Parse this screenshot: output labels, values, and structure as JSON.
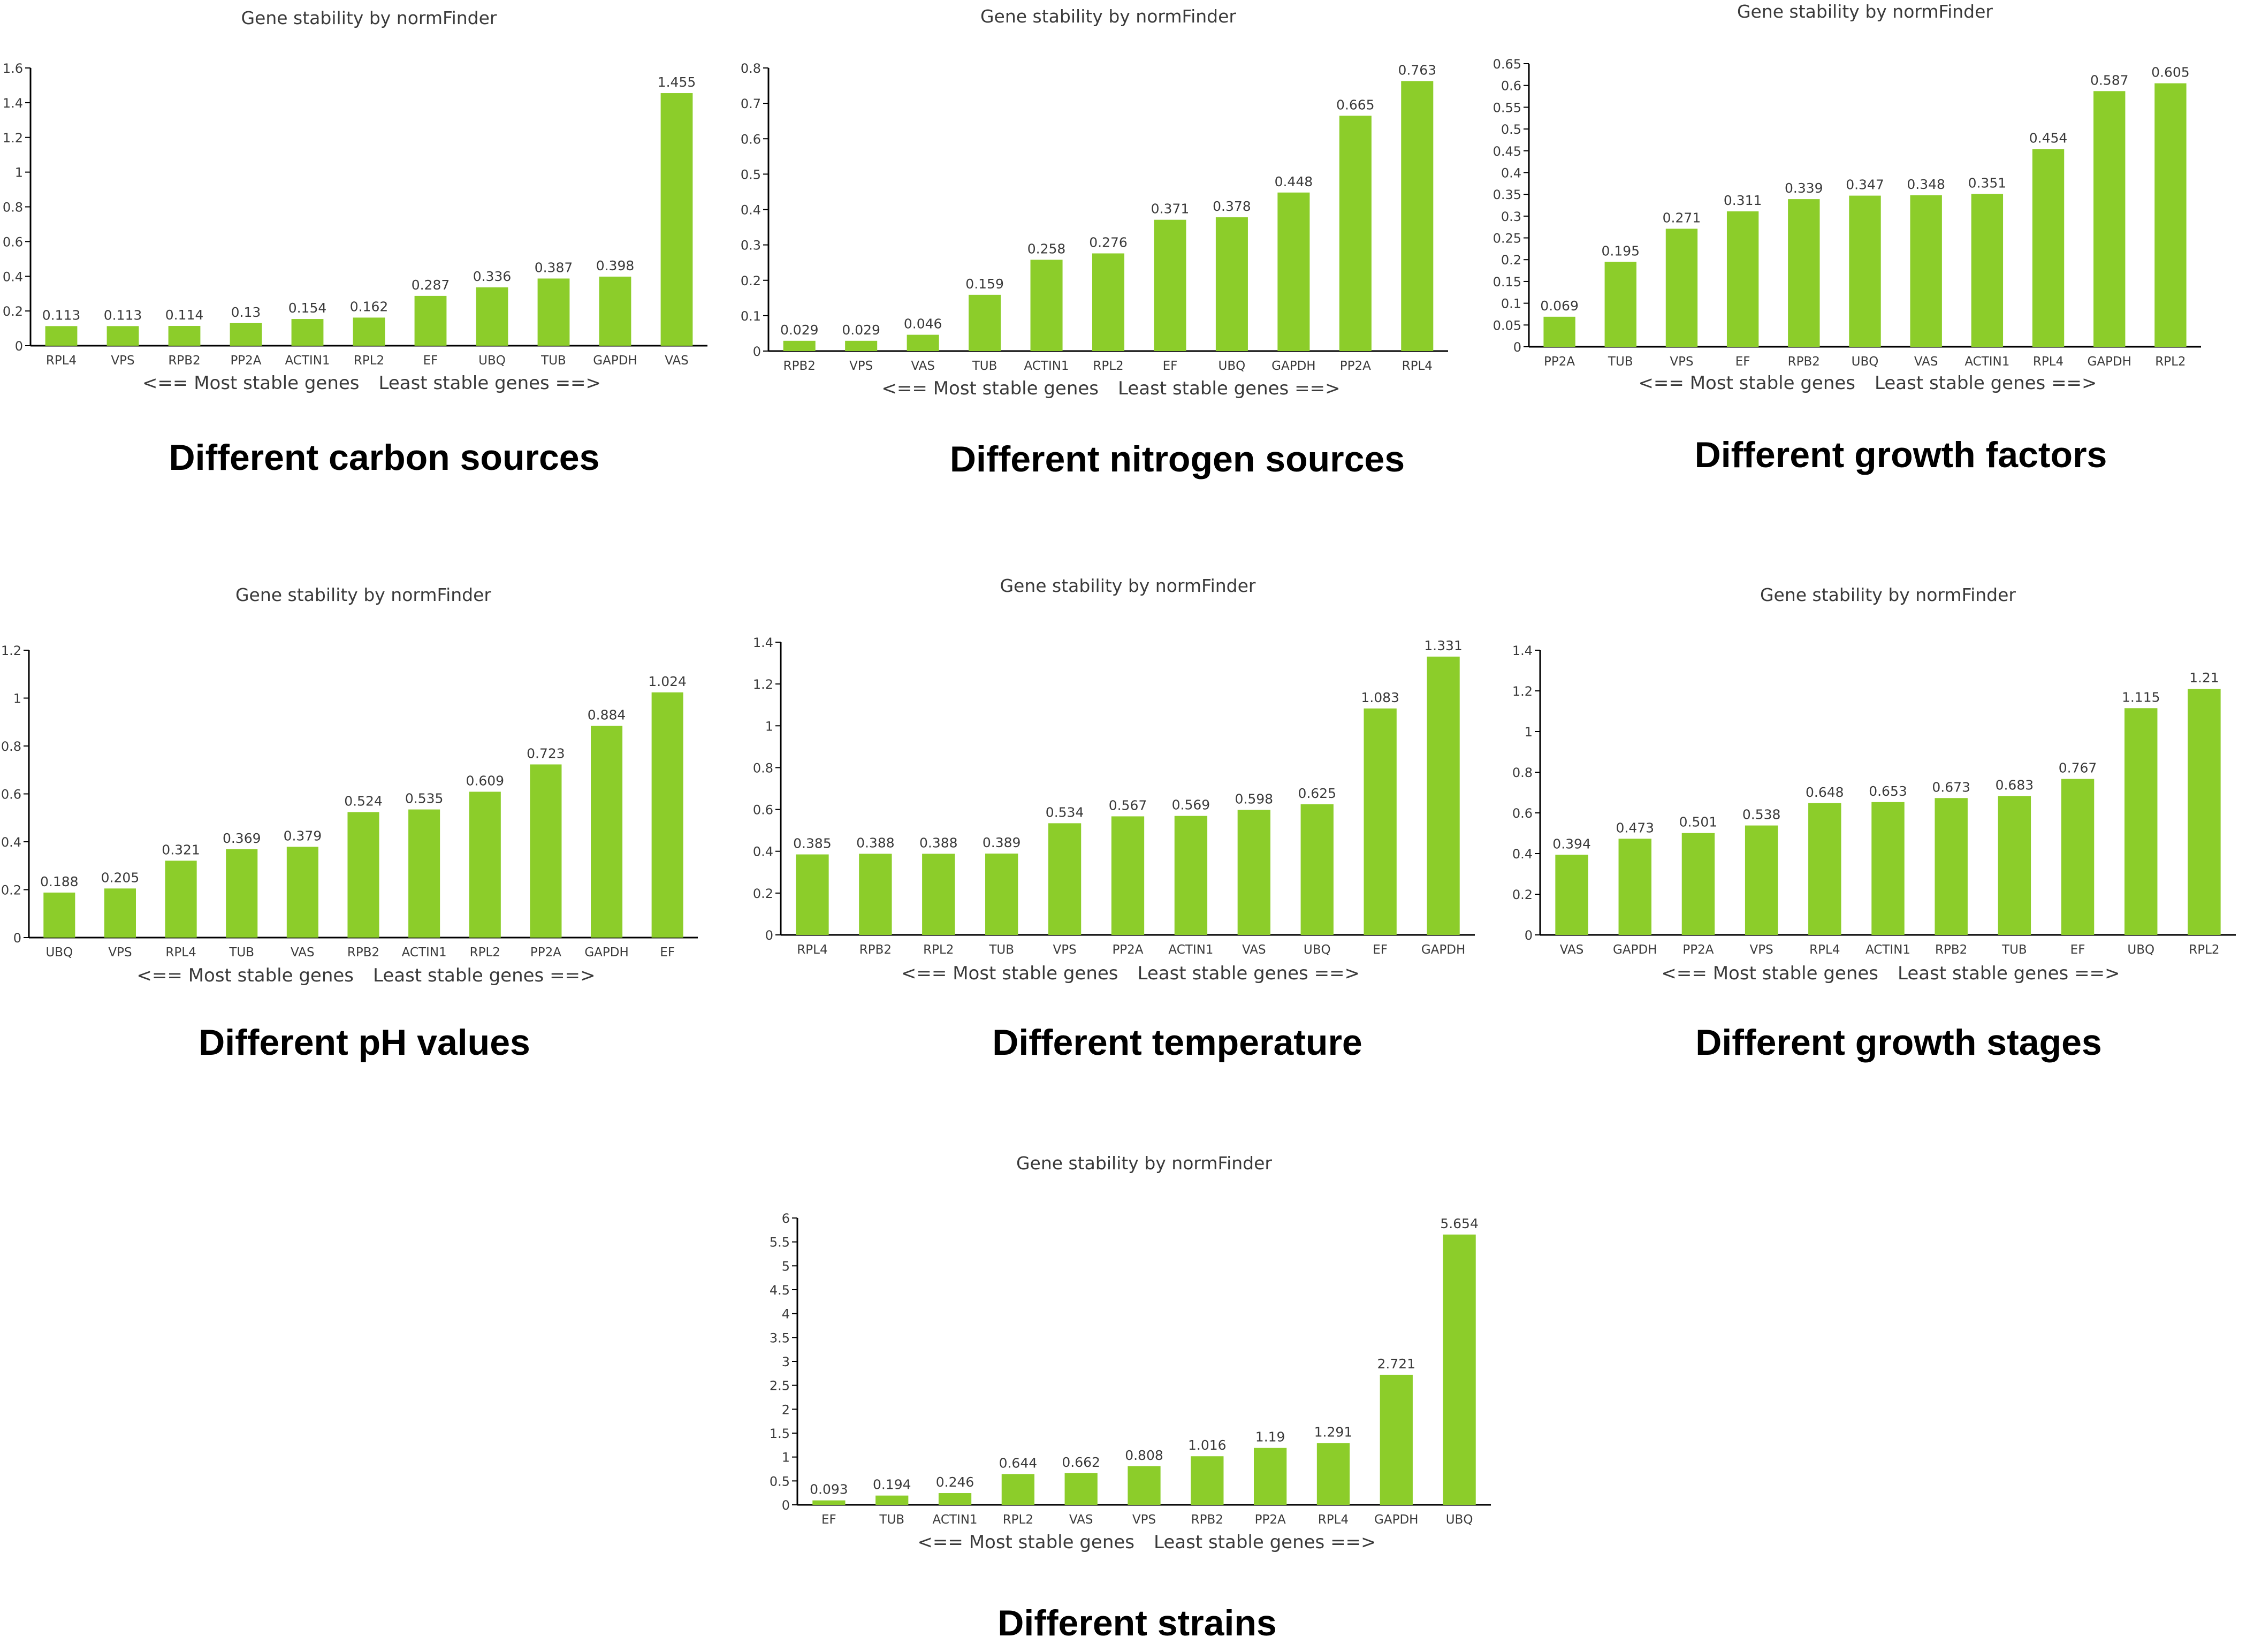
{
  "figure": {
    "bar_color": "#8ccd2a",
    "axis_color": "#000000",
    "text_color": "#3a3a3a",
    "caption_color": "#000000"
  },
  "chart_data": [
    {
      "type": "bar",
      "title": "Gene stability by normFinder",
      "caption": "Different carbon sources",
      "legend_left": "<== Most stable genes",
      "legend_right": "Least stable genes ==>",
      "categories": [
        "RPL4",
        "VPS",
        "RPB2",
        "PP2A",
        "ACTIN1",
        "RPL2",
        "EF",
        "UBQ",
        "TUB",
        "GAPDH",
        "VAS"
      ],
      "values": [
        0.113,
        0.113,
        0.114,
        0.13,
        0.154,
        0.162,
        0.287,
        0.336,
        0.387,
        0.398,
        1.455
      ],
      "value_labels": [
        "0.113",
        "0.113",
        "0.114",
        "0.13",
        "0.154",
        "0.162",
        "0.287",
        "0.336",
        "0.387",
        "0.398",
        "1.455"
      ],
      "ylim": [
        0,
        1.6
      ],
      "yticks": [
        0,
        0.2,
        0.4,
        0.6,
        0.8,
        1,
        1.2,
        1.4,
        1.6
      ],
      "ytick_labels": [
        "0",
        "0.2",
        "0.4",
        "0.6",
        "0.8",
        "1",
        "1.2",
        "1.4",
        "1.6"
      ]
    },
    {
      "type": "bar",
      "title": "Gene stability by normFinder",
      "caption": "Different nitrogen sources",
      "legend_left": "<== Most stable genes",
      "legend_right": "Least stable genes ==>",
      "categories": [
        "RPB2",
        "VPS",
        "VAS",
        "TUB",
        "ACTIN1",
        "RPL2",
        "EF",
        "UBQ",
        "GAPDH",
        "PP2A",
        "RPL4"
      ],
      "values": [
        0.029,
        0.029,
        0.046,
        0.159,
        0.258,
        0.276,
        0.371,
        0.378,
        0.448,
        0.665,
        0.763
      ],
      "value_labels": [
        "0.029",
        "0.029",
        "0.046",
        "0.159",
        "0.258",
        "0.276",
        "0.371",
        "0.378",
        "0.448",
        "0.665",
        "0.763"
      ],
      "ylim": [
        0,
        0.8
      ],
      "yticks": [
        0,
        0.1,
        0.2,
        0.3,
        0.4,
        0.5,
        0.6,
        0.7,
        0.8
      ],
      "ytick_labels": [
        "0",
        "0.1",
        "0.2",
        "0.3",
        "0.4",
        "0.5",
        "0.6",
        "0.7",
        "0.8"
      ]
    },
    {
      "type": "bar",
      "title": "Gene stability by normFinder",
      "caption": "Different growth factors",
      "legend_left": "<== Most stable genes",
      "legend_right": "Least stable genes ==>",
      "categories": [
        "PP2A",
        "TUB",
        "VPS",
        "EF",
        "RPB2",
        "UBQ",
        "VAS",
        "ACTIN1",
        "RPL4",
        "GAPDH",
        "RPL2"
      ],
      "values": [
        0.069,
        0.195,
        0.271,
        0.311,
        0.339,
        0.347,
        0.348,
        0.351,
        0.454,
        0.587,
        0.605
      ],
      "value_labels": [
        "0.069",
        "0.195",
        "0.271",
        "0.311",
        "0.339",
        "0.347",
        "0.348",
        "0.351",
        "0.454",
        "0.587",
        "0.605"
      ],
      "ylim": [
        0,
        0.65
      ],
      "yticks": [
        0,
        0.05,
        0.1,
        0.15,
        0.2,
        0.25,
        0.3,
        0.35,
        0.4,
        0.45,
        0.5,
        0.55,
        0.6,
        0.65
      ],
      "ytick_labels": [
        "0",
        "0.05",
        "0.1",
        "0.15",
        "0.2",
        "0.25",
        "0.3",
        "0.35",
        "0.4",
        "0.45",
        "0.5",
        "0.55",
        "0.6",
        "0.65"
      ]
    },
    {
      "type": "bar",
      "title": "Gene stability by normFinder",
      "caption": "Different pH values",
      "legend_left": "<== Most stable genes",
      "legend_right": "Least stable genes ==>",
      "categories": [
        "UBQ",
        "VPS",
        "RPL4",
        "TUB",
        "VAS",
        "RPB2",
        "ACTIN1",
        "RPL2",
        "PP2A",
        "GAPDH",
        "EF"
      ],
      "values": [
        0.188,
        0.205,
        0.321,
        0.369,
        0.379,
        0.524,
        0.535,
        0.609,
        0.723,
        0.884,
        1.024
      ],
      "value_labels": [
        "0.188",
        "0.205",
        "0.321",
        "0.369",
        "0.379",
        "0.524",
        "0.535",
        "0.609",
        "0.723",
        "0.884",
        "1.024"
      ],
      "ylim": [
        0,
        1.2
      ],
      "yticks": [
        0,
        0.2,
        0.4,
        0.6,
        0.8,
        1,
        1.2
      ],
      "ytick_labels": [
        "0",
        "0.2",
        "0.4",
        "0.6",
        "0.8",
        "1",
        "1.2"
      ]
    },
    {
      "type": "bar",
      "title": "Gene stability by normFinder",
      "caption": "Different temperature",
      "legend_left": "<== Most stable genes",
      "legend_right": "Least stable genes ==>",
      "categories": [
        "RPL4",
        "RPB2",
        "RPL2",
        "TUB",
        "VPS",
        "PP2A",
        "ACTIN1",
        "VAS",
        "UBQ",
        "EF",
        "GAPDH"
      ],
      "values": [
        0.385,
        0.388,
        0.388,
        0.389,
        0.534,
        0.567,
        0.569,
        0.598,
        0.625,
        1.083,
        1.331
      ],
      "value_labels": [
        "0.385",
        "0.388",
        "0.388",
        "0.389",
        "0.534",
        "0.567",
        "0.569",
        "0.598",
        "0.625",
        "1.083",
        "1.331"
      ],
      "ylim": [
        0,
        1.4
      ],
      "yticks": [
        0,
        0.2,
        0.4,
        0.6,
        0.8,
        1,
        1.2,
        1.4
      ],
      "ytick_labels": [
        "0",
        "0.2",
        "0.4",
        "0.6",
        "0.8",
        "1",
        "1.2",
        "1.4"
      ]
    },
    {
      "type": "bar",
      "title": "Gene stability by normFinder",
      "caption": "Different growth stages",
      "legend_left": "<== Most stable genes",
      "legend_right": "Least stable genes ==>",
      "categories": [
        "VAS",
        "GAPDH",
        "PP2A",
        "VPS",
        "RPL4",
        "ACTIN1",
        "RPB2",
        "TUB",
        "EF",
        "UBQ",
        "RPL2"
      ],
      "values": [
        0.394,
        0.473,
        0.501,
        0.538,
        0.648,
        0.653,
        0.673,
        0.683,
        0.767,
        1.115,
        1.21
      ],
      "value_labels": [
        "0.394",
        "0.473",
        "0.501",
        "0.538",
        "0.648",
        "0.653",
        "0.673",
        "0.683",
        "0.767",
        "1.115",
        "1.21"
      ],
      "ylim": [
        0,
        1.4
      ],
      "yticks": [
        0,
        0.2,
        0.4,
        0.6,
        0.8,
        1,
        1.2,
        1.4
      ],
      "ytick_labels": [
        "0",
        "0.2",
        "0.4",
        "0.6",
        "0.8",
        "1",
        "1.2",
        "1.4"
      ]
    },
    {
      "type": "bar",
      "title": "Gene stability by normFinder",
      "caption": "Different strains",
      "legend_left": "<== Most stable genes",
      "legend_right": "Least stable genes ==>",
      "categories": [
        "EF",
        "TUB",
        "ACTIN1",
        "RPL2",
        "VAS",
        "VPS",
        "RPB2",
        "PP2A",
        "RPL4",
        "GAPDH",
        "UBQ"
      ],
      "values": [
        0.093,
        0.194,
        0.246,
        0.644,
        0.662,
        0.808,
        1.016,
        1.19,
        1.291,
        2.721,
        5.654
      ],
      "value_labels": [
        "0.093",
        "0.194",
        "0.246",
        "0.644",
        "0.662",
        "0.808",
        "1.016",
        "1.19",
        "1.291",
        "2.721",
        "5.654"
      ],
      "ylim": [
        0,
        6
      ],
      "yticks": [
        0,
        0.5,
        1,
        1.5,
        2,
        2.5,
        3,
        3.5,
        4,
        4.5,
        5,
        5.5,
        6
      ],
      "ytick_labels": [
        "0",
        "0.5",
        "1",
        "1.5",
        "2",
        "2.5",
        "3",
        "3.5",
        "4",
        "4.5",
        "5",
        "5.5",
        "6"
      ]
    }
  ]
}
